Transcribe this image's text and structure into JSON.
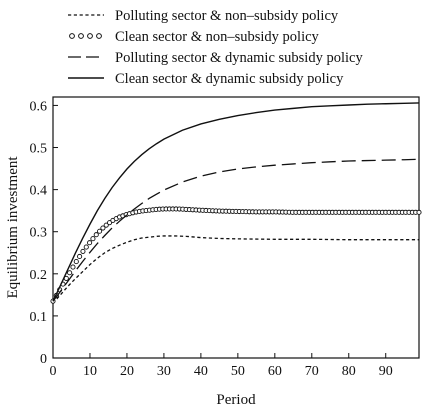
{
  "chart_data": {
    "type": "line",
    "title": "",
    "xlabel": "Period",
    "ylabel": "Equilibrium investment",
    "xlim": [
      0,
      99
    ],
    "ylim": [
      0,
      0.62
    ],
    "xticks": [
      0,
      10,
      20,
      30,
      40,
      50,
      60,
      70,
      80,
      90
    ],
    "yticks": [
      0,
      0.1,
      0.2,
      0.3,
      0.4,
      0.5,
      0.6
    ],
    "ytick_labels": [
      "0",
      "0.1",
      "0.2",
      "0.3",
      "0.4",
      "0.5",
      "0.6"
    ],
    "grid": false,
    "legend_position": "above-plot",
    "series": [
      {
        "name": "Polluting sector & non–subsidy policy",
        "style": "dotted",
        "color": "#111111",
        "x": [
          0,
          2,
          4,
          6,
          8,
          10,
          12,
          14,
          16,
          18,
          20,
          22,
          24,
          26,
          28,
          30,
          33,
          36,
          40,
          45,
          50,
          60,
          70,
          80,
          90,
          99
        ],
        "y": [
          0.13,
          0.15,
          0.17,
          0.188,
          0.205,
          0.222,
          0.237,
          0.25,
          0.26,
          0.268,
          0.275,
          0.281,
          0.285,
          0.287,
          0.289,
          0.29,
          0.29,
          0.289,
          0.286,
          0.284,
          0.283,
          0.282,
          0.282,
          0.281,
          0.281,
          0.281
        ]
      },
      {
        "name": "Clean sector & non–subsidy policy",
        "style": "circles",
        "color": "#111111",
        "x": [
          0,
          2,
          4,
          6,
          8,
          10,
          12,
          14,
          16,
          18,
          20,
          22,
          24,
          26,
          28,
          30,
          32,
          34,
          36,
          38,
          40,
          45,
          50,
          55,
          60,
          65,
          70,
          75,
          80,
          85,
          90,
          95,
          99
        ],
        "y": [
          0.135,
          0.165,
          0.195,
          0.225,
          0.252,
          0.275,
          0.296,
          0.313,
          0.326,
          0.335,
          0.341,
          0.346,
          0.349,
          0.351,
          0.353,
          0.354,
          0.354,
          0.354,
          0.353,
          0.352,
          0.351,
          0.349,
          0.348,
          0.347,
          0.347,
          0.346,
          0.346,
          0.346,
          0.346,
          0.346,
          0.346,
          0.346,
          0.346
        ]
      },
      {
        "name": "Polluting sector & dynamic subsidy policy",
        "style": "dashed",
        "color": "#111111",
        "x": [
          0,
          2,
          4,
          6,
          8,
          10,
          12,
          14,
          16,
          18,
          20,
          22,
          24,
          26,
          28,
          30,
          35,
          40,
          45,
          50,
          55,
          60,
          65,
          70,
          75,
          80,
          85,
          90,
          95,
          99
        ],
        "y": [
          0.135,
          0.158,
          0.182,
          0.206,
          0.229,
          0.251,
          0.272,
          0.291,
          0.309,
          0.325,
          0.34,
          0.354,
          0.367,
          0.379,
          0.389,
          0.399,
          0.418,
          0.432,
          0.442,
          0.449,
          0.454,
          0.458,
          0.461,
          0.464,
          0.466,
          0.468,
          0.469,
          0.47,
          0.471,
          0.472
        ]
      },
      {
        "name": "Clean sector & dynamic subsidy policy",
        "style": "solid",
        "color": "#111111",
        "x": [
          0,
          2,
          4,
          6,
          8,
          10,
          12,
          14,
          16,
          18,
          20,
          22,
          24,
          26,
          28,
          30,
          35,
          40,
          45,
          50,
          55,
          60,
          65,
          70,
          75,
          80,
          85,
          90,
          95,
          99
        ],
        "y": [
          0.135,
          0.172,
          0.21,
          0.248,
          0.284,
          0.318,
          0.35,
          0.379,
          0.405,
          0.428,
          0.449,
          0.467,
          0.483,
          0.497,
          0.509,
          0.52,
          0.541,
          0.556,
          0.567,
          0.576,
          0.583,
          0.589,
          0.593,
          0.597,
          0.599,
          0.601,
          0.603,
          0.604,
          0.605,
          0.606
        ]
      }
    ]
  }
}
